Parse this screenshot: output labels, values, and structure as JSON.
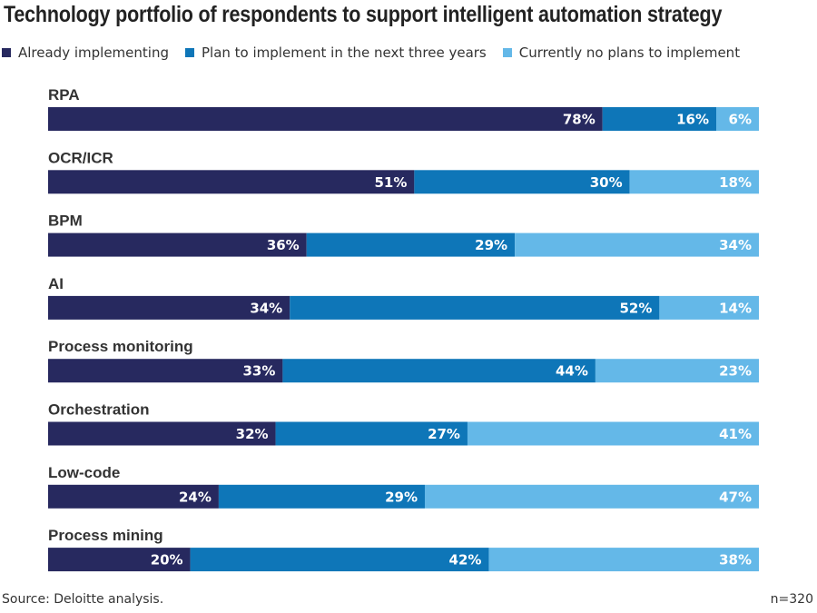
{
  "title": "Technology portfolio of respondents to support intelligent automation strategy",
  "source": "Source: Deloitte analysis.",
  "n_label": "n=320",
  "colors": {
    "already": "#27295f",
    "plan": "#0e76b8",
    "none": "#64b8e8"
  },
  "chart_data": {
    "type": "bar",
    "orientation": "horizontal",
    "stacked": true,
    "value_unit": "%",
    "categories": [
      "RPA",
      "OCR/ICR",
      "BPM",
      "AI",
      "Process monitoring",
      "Orchestration",
      "Low-code",
      "Process mining"
    ],
    "series": [
      {
        "name": "Already implementing",
        "color": "#27295f",
        "values": [
          78,
          51,
          36,
          34,
          33,
          32,
          24,
          20
        ]
      },
      {
        "name": "Plan to implement in the next three years",
        "color": "#0e76b8",
        "values": [
          16,
          30,
          29,
          52,
          44,
          27,
          29,
          42
        ]
      },
      {
        "name": "Currently no plans to implement",
        "color": "#64b8e8",
        "values": [
          6,
          18,
          34,
          14,
          23,
          41,
          47,
          38
        ]
      }
    ],
    "legend_position": "top-left",
    "grid": false
  }
}
